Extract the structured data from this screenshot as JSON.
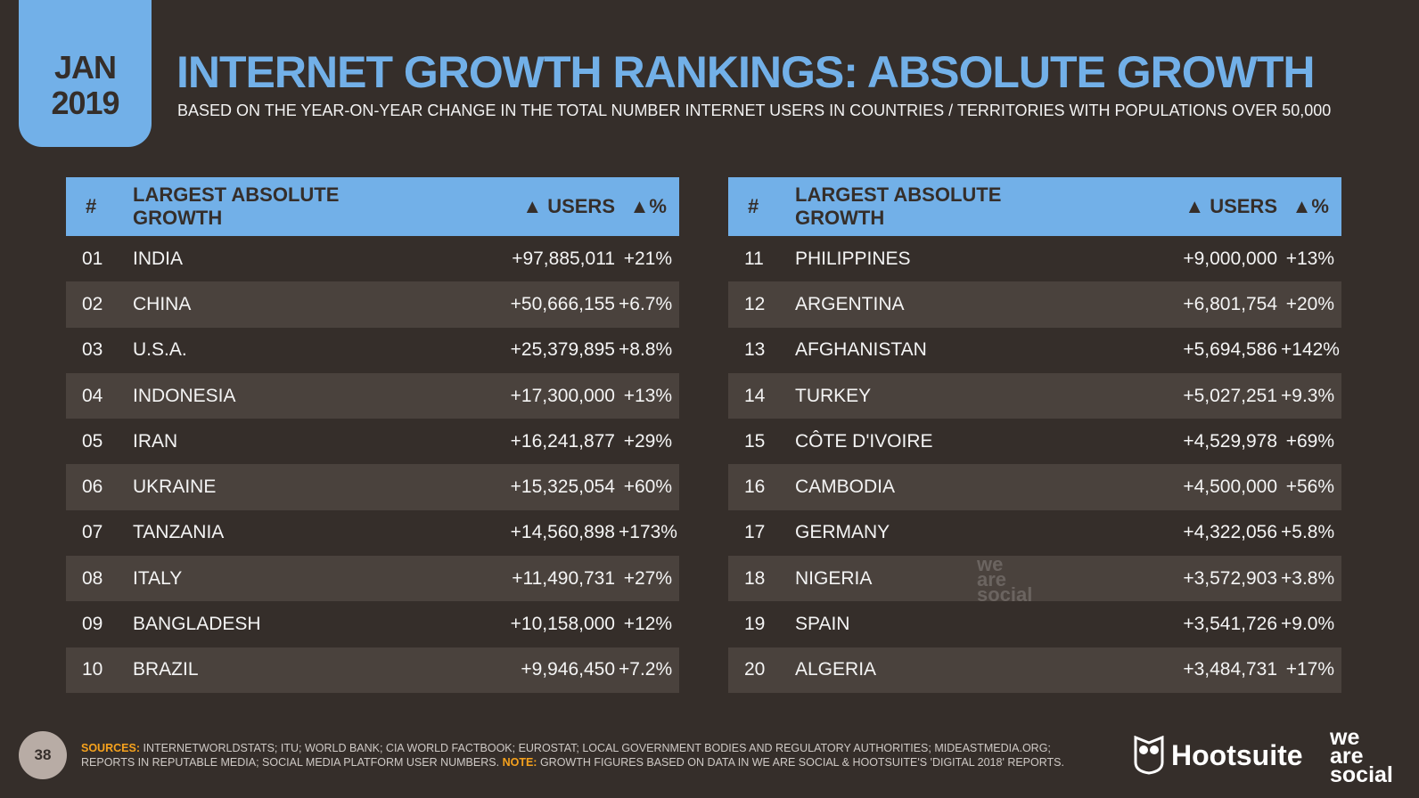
{
  "date": {
    "month": "JAN",
    "year": "2019"
  },
  "title": "INTERNET GROWTH RANKINGS: ABSOLUTE GROWTH",
  "subtitle": "BASED ON THE YEAR-ON-YEAR CHANGE IN THE TOTAL NUMBER INTERNET USERS IN COUNTRIES / TERRITORIES WITH POPULATIONS OVER 50,000",
  "headers": {
    "rank": "#",
    "name": "LARGEST ABSOLUTE GROWTH",
    "users": "▲ USERS",
    "pct": "▲%"
  },
  "left": [
    {
      "rank": "01",
      "name": "INDIA",
      "users": "+97,885,011",
      "pct": "+21%"
    },
    {
      "rank": "02",
      "name": "CHINA",
      "users": "+50,666,155",
      "pct": "+6.7%"
    },
    {
      "rank": "03",
      "name": "U.S.A.",
      "users": "+25,379,895",
      "pct": "+8.8%"
    },
    {
      "rank": "04",
      "name": "INDONESIA",
      "users": "+17,300,000",
      "pct": "+13%"
    },
    {
      "rank": "05",
      "name": "IRAN",
      "users": "+16,241,877",
      "pct": "+29%"
    },
    {
      "rank": "06",
      "name": "UKRAINE",
      "users": "+15,325,054",
      "pct": "+60%"
    },
    {
      "rank": "07",
      "name": "TANZANIA",
      "users": "+14,560,898",
      "pct": "+173%"
    },
    {
      "rank": "08",
      "name": "ITALY",
      "users": "+11,490,731",
      "pct": "+27%"
    },
    {
      "rank": "09",
      "name": "BANGLADESH",
      "users": "+10,158,000",
      "pct": "+12%"
    },
    {
      "rank": "10",
      "name": "BRAZIL",
      "users": "+9,946,450",
      "pct": "+7.2%"
    }
  ],
  "right": [
    {
      "rank": "11",
      "name": "PHILIPPINES",
      "users": "+9,000,000",
      "pct": "+13%"
    },
    {
      "rank": "12",
      "name": "ARGENTINA",
      "users": "+6,801,754",
      "pct": "+20%"
    },
    {
      "rank": "13",
      "name": "AFGHANISTAN",
      "users": "+5,694,586",
      "pct": "+142%"
    },
    {
      "rank": "14",
      "name": "TURKEY",
      "users": "+5,027,251",
      "pct": "+9.3%"
    },
    {
      "rank": "15",
      "name": "CÔTE D'IVOIRE",
      "users": "+4,529,978",
      "pct": "+69%"
    },
    {
      "rank": "16",
      "name": "CAMBODIA",
      "users": "+4,500,000",
      "pct": "+56%"
    },
    {
      "rank": "17",
      "name": "GERMANY",
      "users": "+4,322,056",
      "pct": "+5.8%"
    },
    {
      "rank": "18",
      "name": "NIGERIA",
      "users": "+3,572,903",
      "pct": "+3.8%"
    },
    {
      "rank": "19",
      "name": "SPAIN",
      "users": "+3,541,726",
      "pct": "+9.0%"
    },
    {
      "rank": "20",
      "name": "ALGERIA",
      "users": "+3,484,731",
      "pct": "+17%"
    }
  ],
  "footer": {
    "sources_label": "SOURCES:",
    "sources": "INTERNETWORLDSTATS; ITU; WORLD BANK; CIA WORLD FACTBOOK; EUROSTAT; LOCAL GOVERNMENT BODIES AND REGULATORY AUTHORITIES; MIDEASTMEDIA.ORG; REPORTS IN REPUTABLE MEDIA; SOCIAL MEDIA PLATFORM USER NUMBERS.",
    "note_label": "NOTE:",
    "note": "GROWTH FIGURES BASED ON DATA IN WE ARE SOCIAL & HOOTSUITE'S 'DIGITAL 2018' REPORTS."
  },
  "page_number": "38",
  "brands": {
    "hootsuite": "Hootsuite",
    "wearesocial": [
      "we",
      "are",
      "social"
    ]
  },
  "colors": {
    "accent": "#72b0e8",
    "background": "#352e2a",
    "row_alt": "#4a423d",
    "note": "#f6a21d"
  }
}
